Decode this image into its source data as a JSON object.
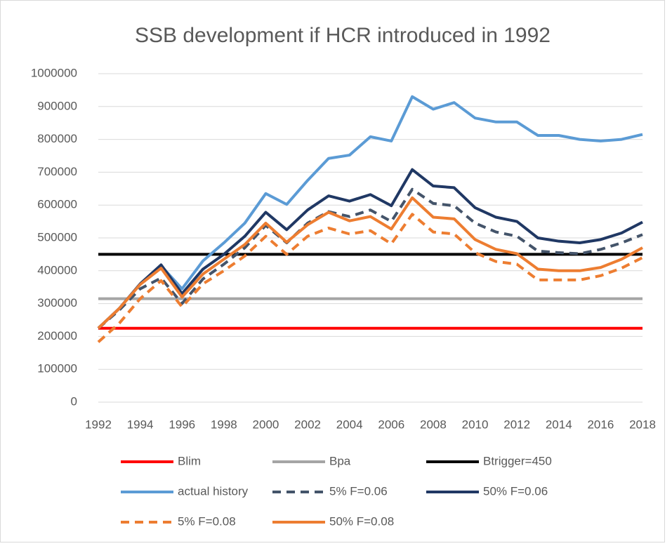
{
  "chart_data": {
    "type": "line",
    "title": "SSB development if HCR introduced in 1992",
    "x": [
      1992,
      1993,
      1994,
      1995,
      1996,
      1997,
      1998,
      1999,
      2000,
      2001,
      2002,
      2003,
      2004,
      2005,
      2006,
      2007,
      2008,
      2009,
      2010,
      2011,
      2012,
      2013,
      2014,
      2015,
      2016,
      2017,
      2018
    ],
    "xlim": [
      1992,
      2018
    ],
    "xticks": [
      1992,
      1994,
      1996,
      1998,
      2000,
      2002,
      2004,
      2006,
      2008,
      2010,
      2012,
      2014,
      2016,
      2018
    ],
    "ylim": [
      0,
      1000000
    ],
    "yticks": [
      0,
      100000,
      200000,
      300000,
      400000,
      500000,
      600000,
      700000,
      800000,
      900000,
      1000000
    ],
    "grid": true,
    "legend": "bottom",
    "series": [
      {
        "name": "Blim",
        "color": "#ff0000",
        "values": [
          225000,
          225000,
          225000,
          225000,
          225000,
          225000,
          225000,
          225000,
          225000,
          225000,
          225000,
          225000,
          225000,
          225000,
          225000,
          225000,
          225000,
          225000,
          225000,
          225000,
          225000,
          225000,
          225000,
          225000,
          225000,
          225000,
          225000
        ]
      },
      {
        "name": "Bpa",
        "color": "#a5a5a5",
        "values": [
          315000,
          315000,
          315000,
          315000,
          315000,
          315000,
          315000,
          315000,
          315000,
          315000,
          315000,
          315000,
          315000,
          315000,
          315000,
          315000,
          315000,
          315000,
          315000,
          315000,
          315000,
          315000,
          315000,
          315000,
          315000,
          315000,
          315000
        ]
      },
      {
        "name": "Btrigger=450",
        "color": "#000000",
        "values": [
          450000,
          450000,
          450000,
          450000,
          450000,
          450000,
          450000,
          450000,
          450000,
          450000,
          450000,
          450000,
          450000,
          450000,
          450000,
          450000,
          450000,
          450000,
          450000,
          450000,
          450000,
          450000,
          450000,
          450000,
          450000,
          450000,
          450000
        ]
      },
      {
        "name": "actual history",
        "color": "#5b9bd5",
        "values": [
          225000,
          285000,
          360000,
          415000,
          345000,
          430000,
          485000,
          545000,
          635000,
          602000,
          675000,
          742000,
          752000,
          808000,
          795000,
          930000,
          892000,
          912000,
          865000,
          853000,
          853000,
          812000,
          812000,
          800000,
          795000,
          800000,
          815000
        ]
      },
      {
        "name": "5% F=0.06",
        "color": "#44546a",
        "dashed": true,
        "values": [
          225000,
          280000,
          345000,
          378000,
          300000,
          375000,
          420000,
          470000,
          538000,
          485000,
          545000,
          580000,
          565000,
          585000,
          550000,
          648000,
          605000,
          598000,
          545000,
          518000,
          505000,
          460000,
          455000,
          452000,
          465000,
          485000,
          510000
        ]
      },
      {
        "name": "50% F=0.06",
        "color": "#203864",
        "values": [
          225000,
          285000,
          360000,
          418000,
          330000,
          405000,
          450000,
          505000,
          578000,
          525000,
          585000,
          628000,
          612000,
          632000,
          598000,
          708000,
          658000,
          653000,
          592000,
          563000,
          550000,
          500000,
          490000,
          485000,
          495000,
          515000,
          548000
        ]
      },
      {
        "name": "5% F=0.08",
        "color": "#ed7d31",
        "dashed": true,
        "values": [
          183000,
          240000,
          315000,
          370000,
          290000,
          360000,
          400000,
          445000,
          505000,
          450000,
          505000,
          530000,
          512000,
          522000,
          482000,
          572000,
          518000,
          512000,
          455000,
          428000,
          420000,
          372000,
          372000,
          372000,
          385000,
          408000,
          440000
        ]
      },
      {
        "name": "50% F=0.08",
        "color": "#ed7d31",
        "values": [
          225000,
          285000,
          358000,
          408000,
          320000,
          390000,
          435000,
          480000,
          545000,
          487000,
          540000,
          578000,
          552000,
          565000,
          527000,
          622000,
          563000,
          558000,
          495000,
          465000,
          452000,
          405000,
          400000,
          400000,
          410000,
          435000,
          470000
        ]
      }
    ]
  }
}
